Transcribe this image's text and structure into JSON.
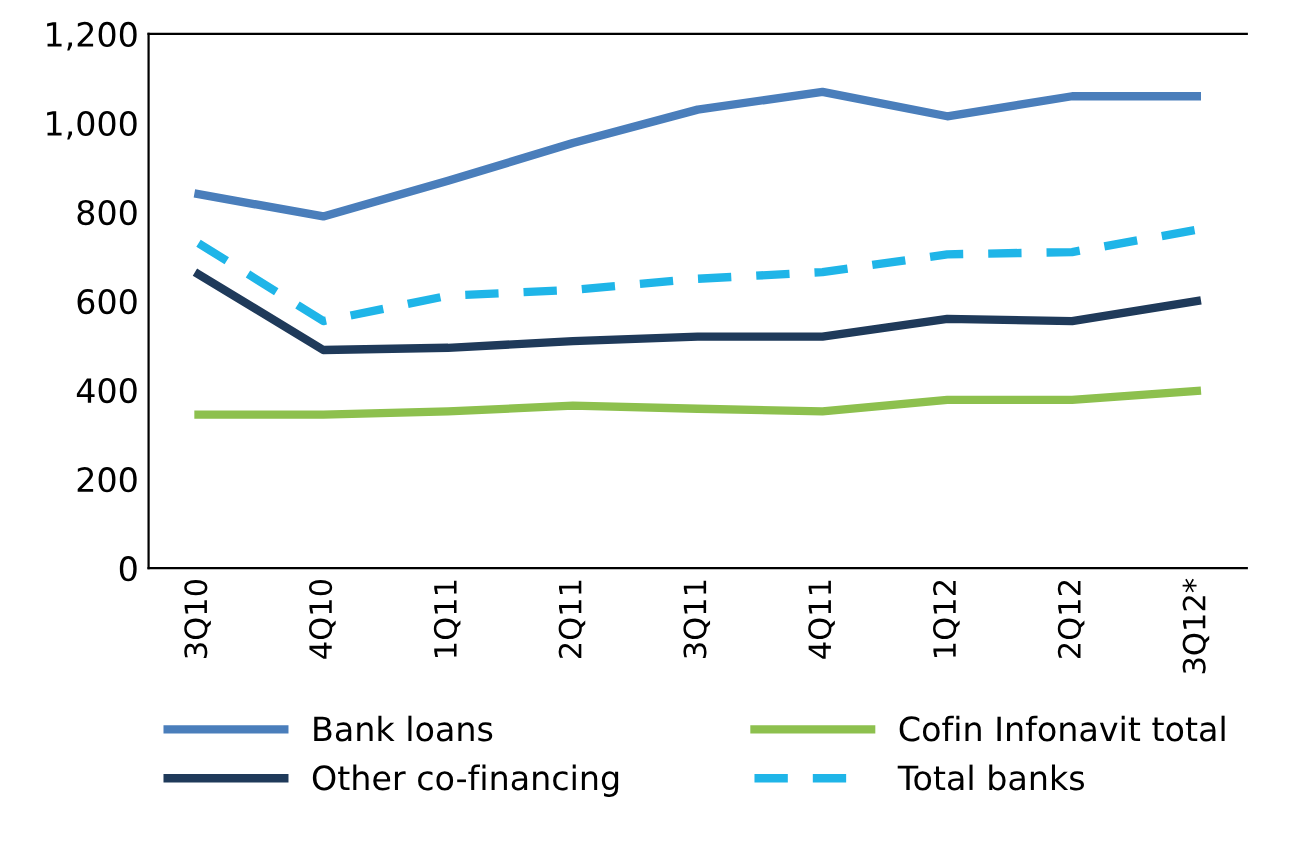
{
  "chart_data": {
    "type": "line",
    "categories": [
      "3Q10",
      "4Q10",
      "1Q11",
      "2Q11",
      "3Q11",
      "4Q11",
      "1Q12",
      "2Q12",
      "3Q12*"
    ],
    "series": [
      {
        "name": "Bank loans",
        "color": "#4a7ebb",
        "values": [
          840,
          790,
          870,
          955,
          1030,
          1070,
          1015,
          1060,
          1060
        ]
      },
      {
        "name": "Other co-financing",
        "color": "#1f3a5a",
        "values": [
          660,
          490,
          495,
          510,
          520,
          520,
          560,
          555,
          600
        ]
      },
      {
        "name": "Cofin Infonavit total",
        "color": "#8dc04e",
        "values": [
          345,
          345,
          352,
          365,
          358,
          352,
          378,
          378,
          398
        ]
      },
      {
        "name": "Total banks",
        "color": "#1fb5e8",
        "values": [
          730,
          555,
          612,
          625,
          650,
          665,
          705,
          710,
          760
        ],
        "line_style": "dashed"
      }
    ],
    "ylim": [
      0,
      1200
    ],
    "yticks": [
      0,
      200,
      400,
      600,
      800,
      {
        "value": 1000,
        "label": "1,000"
      },
      {
        "value": 1200,
        "label": "1,200"
      }
    ],
    "grid": false,
    "legend": "bottom",
    "marker": "none",
    "line_style": "solid"
  }
}
